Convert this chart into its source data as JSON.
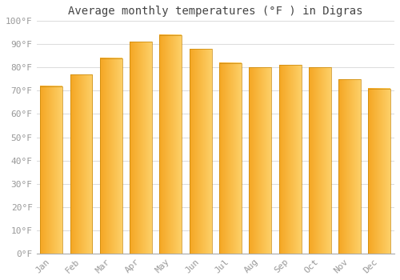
{
  "title": "Average monthly temperatures (°F ) in Digras",
  "months": [
    "Jan",
    "Feb",
    "Mar",
    "Apr",
    "May",
    "Jun",
    "Jul",
    "Aug",
    "Sep",
    "Oct",
    "Nov",
    "Dec"
  ],
  "values": [
    72,
    77,
    84,
    91,
    94,
    88,
    82,
    80,
    81,
    80,
    75,
    71
  ],
  "bar_color_left": "#F5A623",
  "bar_color_right": "#FDD068",
  "bar_edge_color": "#C8870A",
  "background_color": "#FFFFFF",
  "grid_color": "#DDDDDD",
  "ylim": [
    0,
    100
  ],
  "yticks": [
    0,
    10,
    20,
    30,
    40,
    50,
    60,
    70,
    80,
    90,
    100
  ],
  "ytick_labels": [
    "0°F",
    "10°F",
    "20°F",
    "30°F",
    "40°F",
    "50°F",
    "60°F",
    "70°F",
    "80°F",
    "90°F",
    "100°F"
  ],
  "title_fontsize": 10,
  "tick_fontsize": 8,
  "font_family": "monospace",
  "tick_color": "#999999",
  "title_color": "#444444"
}
